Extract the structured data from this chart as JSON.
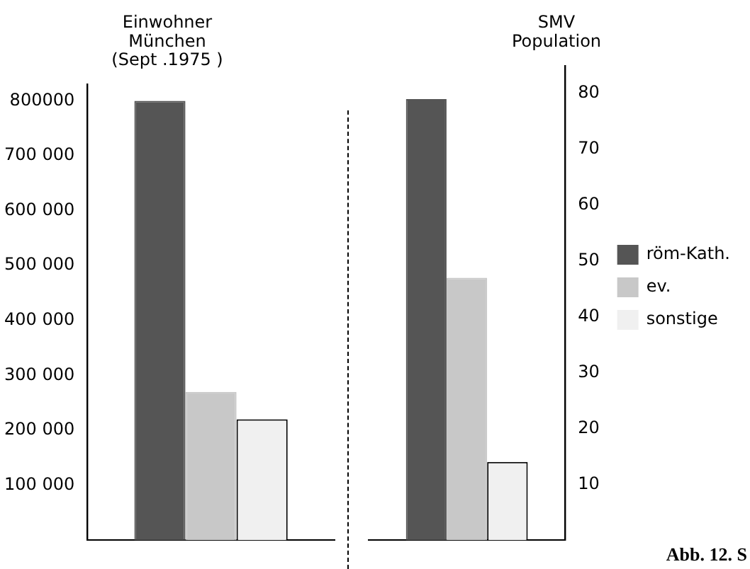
{
  "chart_data": [
    {
      "type": "bar",
      "title": "Einwohner\nMünchen\n(Sept .1975 )",
      "categories": [
        null
      ],
      "series": [
        {
          "color": "#555555",
          "values": [
            800000
          ]
        },
        {
          "color": "#c8c8c8",
          "values": [
            270000
          ]
        },
        {
          "color": "#f0f0f0",
          "values": [
            220000
          ]
        }
      ],
      "ylim": [
        0,
        830000
      ],
      "yticks": [
        {
          "value": 100000,
          "label": "100 000"
        },
        {
          "value": 200000,
          "label": "200 000"
        },
        {
          "value": 300000,
          "label": "300 000"
        },
        {
          "value": 400000,
          "label": "400 000"
        },
        {
          "value": 500000,
          "label": "500 000"
        },
        {
          "value": 600000,
          "label": "600 000"
        },
        {
          "value": 700000,
          "label": "700 000"
        },
        {
          "value": 800000,
          "label": "800000"
        }
      ],
      "grid": false,
      "legend": false
    },
    {
      "type": "bar",
      "title": "SMV\nPopulation",
      "categories": [
        null
      ],
      "series": [
        {
          "name": "röm-Kath.",
          "color": "#555555",
          "values": [
            79
          ]
        },
        {
          "name": "ev.",
          "color": "#c8c8c8",
          "values": [
            47
          ]
        },
        {
          "name": "sonstige",
          "color": "#f0f0f0",
          "values": [
            14
          ]
        }
      ],
      "ylim": [
        0,
        85
      ],
      "yticks": [
        10,
        20,
        30,
        40,
        50,
        60,
        70,
        80
      ],
      "grid": false,
      "legend": "right",
      "annotations": [
        "Abb. 12. S"
      ]
    }
  ]
}
